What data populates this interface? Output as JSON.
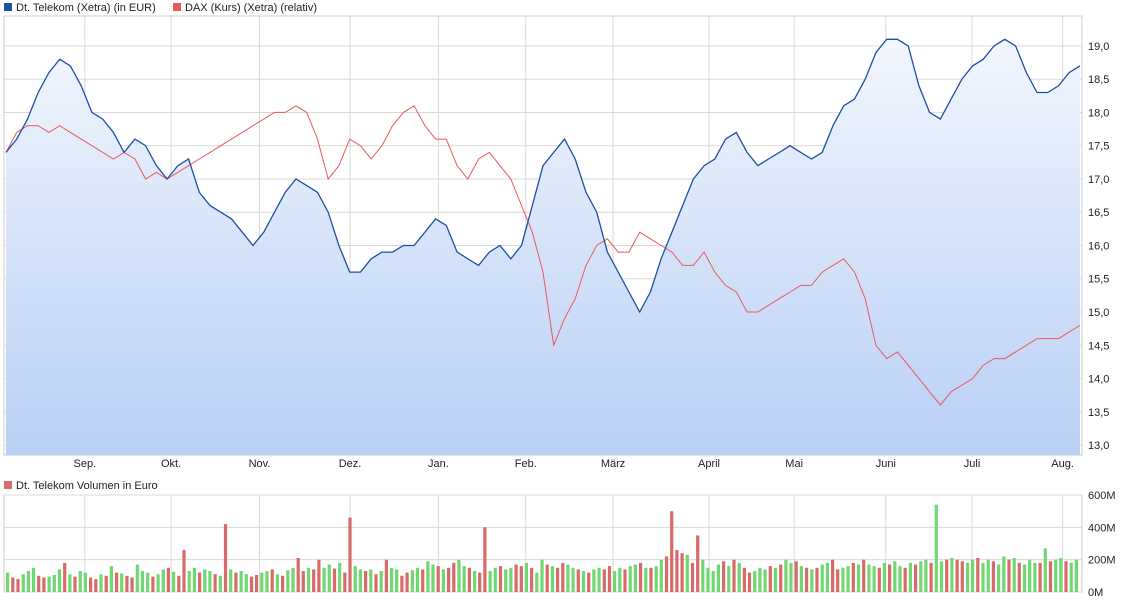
{
  "colors": {
    "telekom": "#1c4fa6",
    "dax": "#e8595c",
    "area_top": "#f2f6fd",
    "area_bottom": "#b8cff5",
    "grid": "#d9d9d9",
    "vol_up": "#70d870",
    "vol_down": "#d86a6a"
  },
  "chart_data": [
    {
      "type": "line",
      "legend": [
        {
          "name": "Dt. Telekom (Xetra) (in EUR)",
          "color": "#1c4fa6"
        },
        {
          "name": "DAX (Kurs) (Xetra) (relativ)",
          "color": "#e8595c"
        }
      ],
      "legend_placement": "top-left",
      "grid": true,
      "ylim": [
        12.85,
        19.45
      ],
      "y_ticks": [
        "13,0",
        "13,5",
        "14,0",
        "14,5",
        "15,0",
        "15,5",
        "16,0",
        "16,5",
        "17,0",
        "17,5",
        "18,0",
        "18,5",
        "19,0"
      ],
      "x_ticks": [
        "Sep.",
        "Okt.",
        "Nov.",
        "Dez.",
        "Jan.",
        "Feb.",
        "März",
        "April",
        "Mai",
        "Juni",
        "Juli",
        "Aug."
      ],
      "x_tick_pos": [
        0.075,
        0.155,
        0.237,
        0.321,
        0.403,
        0.484,
        0.565,
        0.654,
        0.733,
        0.818,
        0.898,
        0.982
      ],
      "series": [
        {
          "name": "Dt. Telekom (Xetra) (in EUR)",
          "values": [
            17.4,
            17.6,
            17.9,
            18.3,
            18.6,
            18.8,
            18.7,
            18.4,
            18.0,
            17.9,
            17.7,
            17.4,
            17.6,
            17.5,
            17.2,
            17.0,
            17.2,
            17.3,
            16.8,
            16.6,
            16.5,
            16.4,
            16.2,
            16.0,
            16.2,
            16.5,
            16.8,
            17.0,
            16.9,
            16.8,
            16.5,
            16.0,
            15.6,
            15.6,
            15.8,
            15.9,
            15.9,
            16.0,
            16.0,
            16.2,
            16.4,
            16.3,
            15.9,
            15.8,
            15.7,
            15.9,
            16.0,
            15.8,
            16.0,
            16.6,
            17.2,
            17.4,
            17.6,
            17.3,
            16.8,
            16.5,
            15.9,
            15.6,
            15.3,
            15.0,
            15.3,
            15.8,
            16.2,
            16.6,
            17.0,
            17.2,
            17.3,
            17.6,
            17.7,
            17.4,
            17.2,
            17.3,
            17.4,
            17.5,
            17.4,
            17.3,
            17.4,
            17.8,
            18.1,
            18.2,
            18.5,
            18.9,
            19.1,
            19.1,
            19.0,
            18.4,
            18.0,
            17.9,
            18.2,
            18.5,
            18.7,
            18.8,
            19.0,
            19.1,
            19.0,
            18.6,
            18.3,
            18.3,
            18.4,
            18.6,
            18.7
          ]
        },
        {
          "name": "DAX (Kurs) (Xetra) (relativ)",
          "values": [
            17.4,
            17.7,
            17.8,
            17.8,
            17.7,
            17.8,
            17.7,
            17.6,
            17.5,
            17.4,
            17.3,
            17.4,
            17.3,
            17.0,
            17.1,
            17.0,
            17.1,
            17.2,
            17.3,
            17.4,
            17.5,
            17.6,
            17.7,
            17.8,
            17.9,
            18.0,
            18.0,
            18.1,
            18.0,
            17.6,
            17.0,
            17.2,
            17.6,
            17.5,
            17.3,
            17.5,
            17.8,
            18.0,
            18.1,
            17.8,
            17.6,
            17.6,
            17.2,
            17.0,
            17.3,
            17.4,
            17.2,
            17.0,
            16.6,
            16.2,
            15.6,
            14.5,
            14.9,
            15.2,
            15.7,
            16.0,
            16.1,
            15.9,
            15.9,
            16.2,
            16.1,
            16.0,
            15.9,
            15.7,
            15.7,
            15.9,
            15.6,
            15.4,
            15.3,
            15.0,
            15.0,
            15.1,
            15.2,
            15.3,
            15.4,
            15.4,
            15.6,
            15.7,
            15.8,
            15.6,
            15.2,
            14.5,
            14.3,
            14.4,
            14.2,
            14.0,
            13.8,
            13.6,
            13.8,
            13.9,
            14.0,
            14.2,
            14.3,
            14.3,
            14.4,
            14.5,
            14.6,
            14.6,
            14.6,
            14.7,
            14.8
          ]
        }
      ]
    },
    {
      "type": "bar",
      "legend": [
        {
          "name": "Dt. Telekom Volumen in Euro",
          "color": "#d86a6a"
        }
      ],
      "legend_placement": "top-left",
      "grid": true,
      "ylim": [
        0,
        600
      ],
      "y_ticks": [
        "0M",
        "200M",
        "400M",
        "600M"
      ],
      "y_tick_values": [
        0,
        200,
        400,
        600
      ],
      "values": [
        120,
        90,
        80,
        110,
        130,
        150,
        100,
        90,
        95,
        105,
        140,
        180,
        110,
        95,
        130,
        120,
        90,
        80,
        110,
        100,
        160,
        120,
        115,
        100,
        90,
        170,
        130,
        120,
        95,
        110,
        140,
        150,
        125,
        100,
        260,
        130,
        150,
        120,
        140,
        130,
        110,
        100,
        420,
        140,
        120,
        130,
        110,
        95,
        105,
        120,
        130,
        140,
        110,
        100,
        135,
        150,
        210,
        130,
        150,
        140,
        200,
        150,
        170,
        145,
        180,
        120,
        460,
        160,
        140,
        130,
        140,
        110,
        130,
        200,
        150,
        140,
        100,
        120,
        135,
        150,
        140,
        190,
        170,
        160,
        140,
        150,
        180,
        200,
        160,
        150,
        130,
        120,
        400,
        130,
        150,
        160,
        140,
        150,
        170,
        160,
        180,
        150,
        120,
        200,
        170,
        160,
        150,
        180,
        170,
        150,
        140,
        130,
        120,
        140,
        150,
        140,
        160,
        130,
        150,
        140,
        160,
        170,
        180,
        150,
        150,
        160,
        200,
        220,
        500,
        260,
        240,
        230,
        180,
        350,
        200,
        150,
        130,
        170,
        190,
        160,
        200,
        180,
        150,
        120,
        130,
        150,
        140,
        160,
        150,
        170,
        200,
        180,
        190,
        160,
        150,
        140,
        150,
        170,
        180,
        200,
        140,
        150,
        160,
        180,
        170,
        200,
        170,
        160,
        150,
        180,
        170,
        190,
        160,
        150,
        180,
        170,
        190,
        200,
        180,
        540,
        190,
        200,
        210,
        200,
        190,
        180,
        200,
        210,
        180,
        200,
        190,
        170,
        220,
        200,
        210,
        180,
        170,
        200,
        180,
        180,
        270,
        190,
        200,
        210,
        190,
        180,
        200
      ],
      "up": [
        1,
        0,
        0,
        1,
        1,
        1,
        0,
        0,
        1,
        1,
        1,
        0,
        1,
        0,
        1,
        1,
        0,
        0,
        1,
        0,
        1,
        0,
        1,
        0,
        0,
        1,
        1,
        1,
        0,
        1,
        1,
        0,
        1,
        0,
        0,
        1,
        1,
        0,
        1,
        1,
        0,
        1,
        0,
        1,
        0,
        1,
        1,
        0,
        0,
        1,
        1,
        0,
        1,
        0,
        1,
        1,
        0,
        0,
        1,
        0,
        0,
        1,
        1,
        0,
        1,
        0,
        0,
        1,
        1,
        0,
        1,
        0,
        1,
        0,
        1,
        1,
        0,
        0,
        1,
        1,
        0,
        1,
        1,
        0,
        1,
        0,
        0,
        1,
        1,
        0,
        1,
        0,
        0,
        1,
        1,
        0,
        1,
        1,
        0,
        0,
        1,
        0,
        1,
        1,
        0,
        1,
        0,
        0,
        1,
        1,
        0,
        1,
        0,
        1,
        1,
        0,
        0,
        1,
        1,
        0,
        1,
        1,
        0,
        1,
        0,
        1,
        1,
        0,
        0,
        0,
        0,
        1,
        0,
        0,
        1,
        1,
        1,
        1,
        0,
        1,
        0,
        1,
        0,
        0,
        1,
        1,
        1,
        0,
        1,
        0,
        1,
        1,
        0,
        1,
        0,
        1,
        0,
        1,
        1,
        0,
        0,
        1,
        1,
        0,
        1,
        0,
        1,
        1,
        0,
        1,
        0,
        1,
        1,
        0,
        1,
        0,
        1,
        1,
        0,
        1,
        1,
        0,
        1,
        0,
        0,
        1,
        1,
        0,
        1,
        1,
        0,
        1,
        1,
        0,
        1,
        0,
        1,
        1,
        1,
        0,
        1,
        0,
        1,
        1,
        0,
        1,
        1
      ]
    }
  ]
}
